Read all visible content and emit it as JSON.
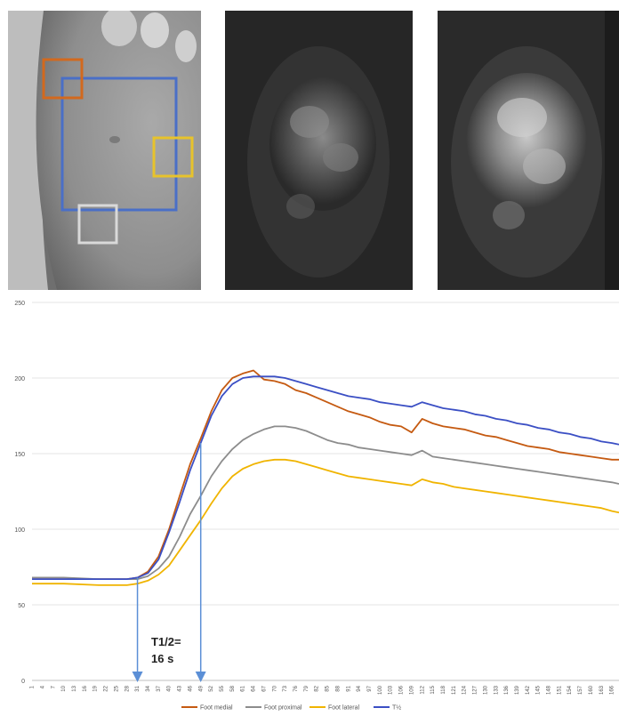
{
  "images": [
    {
      "name": "reference-photo",
      "content": "foot sole grayscale photo with regions of interest"
    },
    {
      "name": "fluorescence-early",
      "content": "dim fluorescence image"
    },
    {
      "name": "fluorescence-late",
      "content": "bright fluorescence image"
    }
  ],
  "roi_colors": {
    "foot_medial": "#d2691e",
    "total": "#4a6fc7",
    "foot_lateral": "#e7c32c",
    "foot_proximal": "#d9d9d9"
  },
  "annotation": {
    "line1": "T1/2=",
    "line2": "16 s"
  },
  "chart_data": {
    "type": "line",
    "title": "",
    "xlabel": "",
    "ylabel": "",
    "ylim": [
      0,
      250
    ],
    "yticks": [
      0,
      50,
      100,
      150,
      200,
      250
    ],
    "x_start": 1,
    "x_end": 168,
    "x_tick_step": 3,
    "grid": true,
    "legend": "bottom",
    "markers_at_x": [
      31,
      49
    ],
    "series": [
      {
        "name": "Foot medial",
        "color": "#c55a11",
        "points": [
          [
            1,
            67
          ],
          [
            10,
            67
          ],
          [
            20,
            67
          ],
          [
            28,
            67
          ],
          [
            31,
            68
          ],
          [
            34,
            72
          ],
          [
            37,
            82
          ],
          [
            40,
            100
          ],
          [
            43,
            122
          ],
          [
            46,
            143
          ],
          [
            49,
            160
          ],
          [
            52,
            178
          ],
          [
            55,
            192
          ],
          [
            58,
            200
          ],
          [
            61,
            203
          ],
          [
            64,
            205
          ],
          [
            67,
            199
          ],
          [
            70,
            198
          ],
          [
            73,
            196
          ],
          [
            76,
            192
          ],
          [
            79,
            190
          ],
          [
            82,
            187
          ],
          [
            85,
            184
          ],
          [
            88,
            181
          ],
          [
            91,
            178
          ],
          [
            94,
            176
          ],
          [
            97,
            174
          ],
          [
            100,
            171
          ],
          [
            103,
            169
          ],
          [
            106,
            168
          ],
          [
            109,
            164
          ],
          [
            112,
            173
          ],
          [
            115,
            170
          ],
          [
            118,
            168
          ],
          [
            121,
            167
          ],
          [
            124,
            166
          ],
          [
            127,
            164
          ],
          [
            130,
            162
          ],
          [
            133,
            161
          ],
          [
            136,
            159
          ],
          [
            139,
            157
          ],
          [
            142,
            155
          ],
          [
            145,
            154
          ],
          [
            148,
            153
          ],
          [
            151,
            151
          ],
          [
            154,
            150
          ],
          [
            157,
            149
          ],
          [
            160,
            148
          ],
          [
            163,
            147
          ],
          [
            166,
            146
          ],
          [
            168,
            146
          ]
        ]
      },
      {
        "name": "Foot proximal",
        "color": "#8c8c8c",
        "points": [
          [
            1,
            68
          ],
          [
            10,
            68
          ],
          [
            20,
            67
          ],
          [
            28,
            67
          ],
          [
            31,
            67
          ],
          [
            34,
            69
          ],
          [
            37,
            74
          ],
          [
            40,
            82
          ],
          [
            43,
            95
          ],
          [
            46,
            110
          ],
          [
            49,
            122
          ],
          [
            52,
            135
          ],
          [
            55,
            145
          ],
          [
            58,
            153
          ],
          [
            61,
            159
          ],
          [
            64,
            163
          ],
          [
            67,
            166
          ],
          [
            70,
            168
          ],
          [
            73,
            168
          ],
          [
            76,
            167
          ],
          [
            79,
            165
          ],
          [
            82,
            162
          ],
          [
            85,
            159
          ],
          [
            88,
            157
          ],
          [
            91,
            156
          ],
          [
            94,
            154
          ],
          [
            97,
            153
          ],
          [
            100,
            152
          ],
          [
            103,
            151
          ],
          [
            106,
            150
          ],
          [
            109,
            149
          ],
          [
            112,
            152
          ],
          [
            115,
            148
          ],
          [
            118,
            147
          ],
          [
            121,
            146
          ],
          [
            124,
            145
          ],
          [
            127,
            144
          ],
          [
            130,
            143
          ],
          [
            133,
            142
          ],
          [
            136,
            141
          ],
          [
            139,
            140
          ],
          [
            142,
            139
          ],
          [
            145,
            138
          ],
          [
            148,
            137
          ],
          [
            151,
            136
          ],
          [
            154,
            135
          ],
          [
            157,
            134
          ],
          [
            160,
            133
          ],
          [
            163,
            132
          ],
          [
            166,
            131
          ],
          [
            168,
            130
          ]
        ]
      },
      {
        "name": "Foot lateral",
        "color": "#f0b400",
        "points": [
          [
            1,
            64
          ],
          [
            10,
            64
          ],
          [
            20,
            63
          ],
          [
            28,
            63
          ],
          [
            31,
            64
          ],
          [
            34,
            66
          ],
          [
            37,
            70
          ],
          [
            40,
            76
          ],
          [
            43,
            86
          ],
          [
            46,
            96
          ],
          [
            49,
            106
          ],
          [
            52,
            117
          ],
          [
            55,
            127
          ],
          [
            58,
            135
          ],
          [
            61,
            140
          ],
          [
            64,
            143
          ],
          [
            67,
            145
          ],
          [
            70,
            146
          ],
          [
            73,
            146
          ],
          [
            76,
            145
          ],
          [
            79,
            143
          ],
          [
            82,
            141
          ],
          [
            85,
            139
          ],
          [
            88,
            137
          ],
          [
            91,
            135
          ],
          [
            94,
            134
          ],
          [
            97,
            133
          ],
          [
            100,
            132
          ],
          [
            103,
            131
          ],
          [
            106,
            130
          ],
          [
            109,
            129
          ],
          [
            112,
            133
          ],
          [
            115,
            131
          ],
          [
            118,
            130
          ],
          [
            121,
            128
          ],
          [
            124,
            127
          ],
          [
            127,
            126
          ],
          [
            130,
            125
          ],
          [
            133,
            124
          ],
          [
            136,
            123
          ],
          [
            139,
            122
          ],
          [
            142,
            121
          ],
          [
            145,
            120
          ],
          [
            148,
            119
          ],
          [
            151,
            118
          ],
          [
            154,
            117
          ],
          [
            157,
            116
          ],
          [
            160,
            115
          ],
          [
            163,
            114
          ],
          [
            166,
            112
          ],
          [
            168,
            111
          ]
        ]
      },
      {
        "name": "T½",
        "color": "#3b4fc4",
        "points": [
          [
            1,
            67
          ],
          [
            10,
            67
          ],
          [
            20,
            67
          ],
          [
            28,
            67
          ],
          [
            31,
            68
          ],
          [
            34,
            71
          ],
          [
            37,
            80
          ],
          [
            40,
            98
          ],
          [
            43,
            118
          ],
          [
            46,
            139
          ],
          [
            49,
            157
          ],
          [
            52,
            175
          ],
          [
            55,
            188
          ],
          [
            58,
            196
          ],
          [
            61,
            200
          ],
          [
            64,
            201
          ],
          [
            67,
            201
          ],
          [
            70,
            201
          ],
          [
            73,
            200
          ],
          [
            76,
            198
          ],
          [
            79,
            196
          ],
          [
            82,
            194
          ],
          [
            85,
            192
          ],
          [
            88,
            190
          ],
          [
            91,
            188
          ],
          [
            94,
            187
          ],
          [
            97,
            186
          ],
          [
            100,
            184
          ],
          [
            103,
            183
          ],
          [
            106,
            182
          ],
          [
            109,
            181
          ],
          [
            112,
            184
          ],
          [
            115,
            182
          ],
          [
            118,
            180
          ],
          [
            121,
            179
          ],
          [
            124,
            178
          ],
          [
            127,
            176
          ],
          [
            130,
            175
          ],
          [
            133,
            173
          ],
          [
            136,
            172
          ],
          [
            139,
            170
          ],
          [
            142,
            169
          ],
          [
            145,
            167
          ],
          [
            148,
            166
          ],
          [
            151,
            164
          ],
          [
            154,
            163
          ],
          [
            157,
            161
          ],
          [
            160,
            160
          ],
          [
            163,
            158
          ],
          [
            166,
            157
          ],
          [
            168,
            156
          ]
        ]
      }
    ]
  }
}
